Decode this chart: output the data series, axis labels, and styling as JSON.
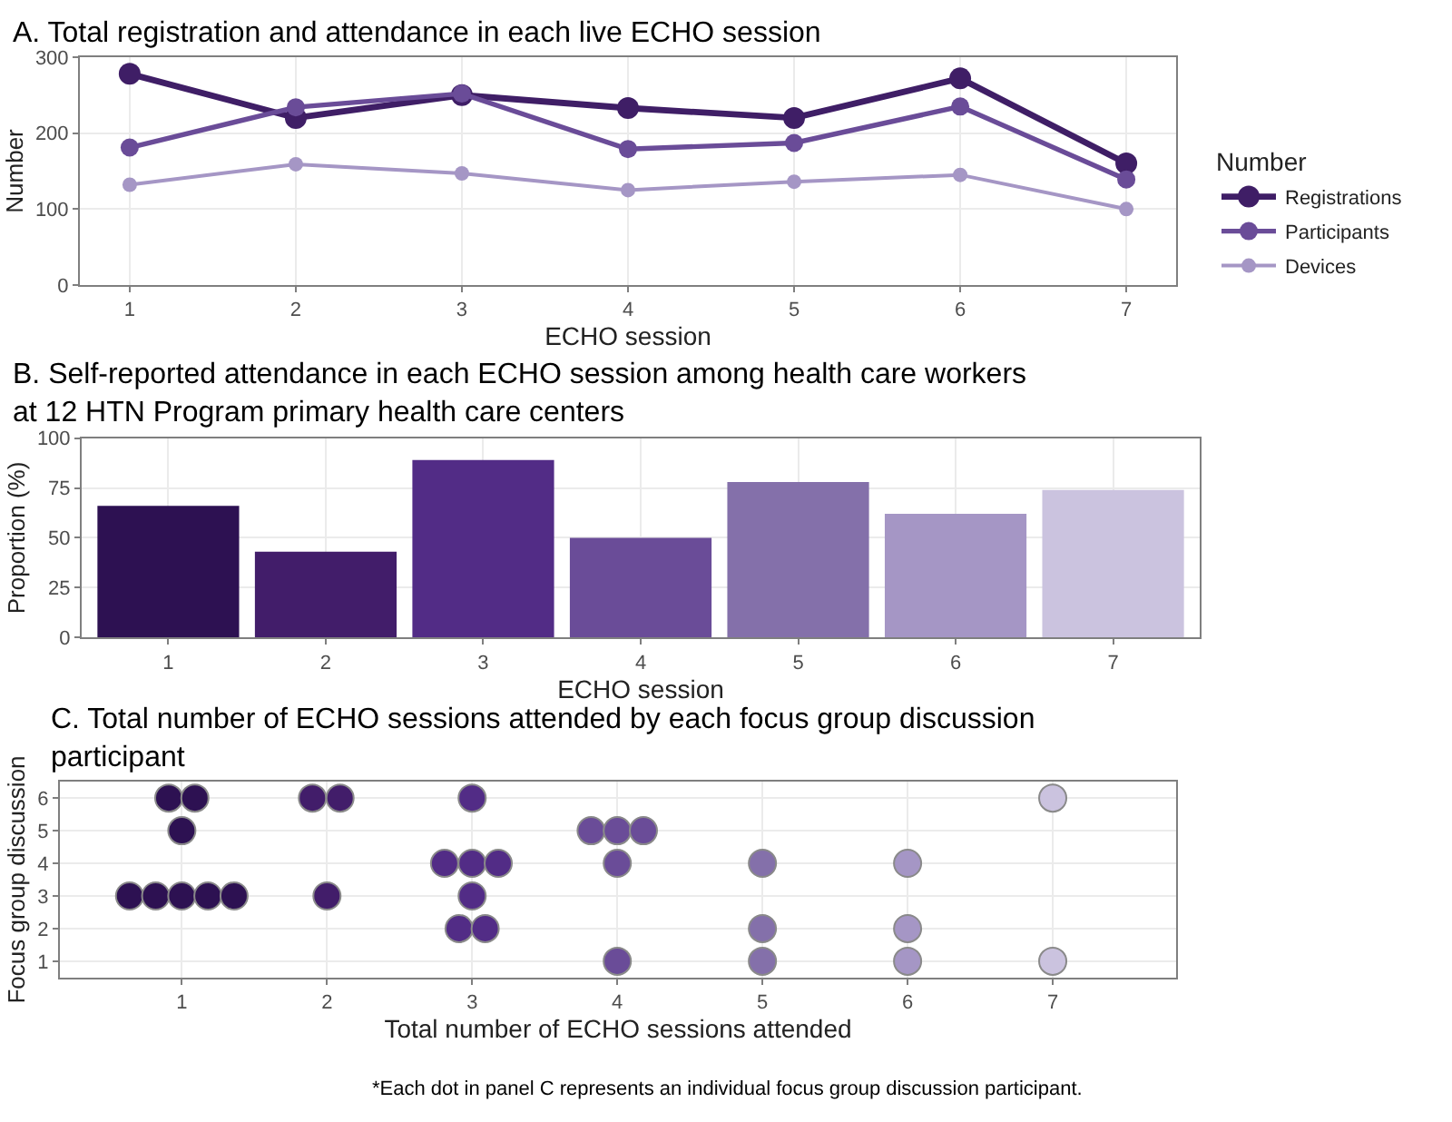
{
  "chart_data": [
    {
      "type": "line",
      "title": "A. Total registration and attendance in each live ECHO session",
      "xlabel": "ECHO session",
      "ylabel": "Number",
      "x": [
        1,
        2,
        3,
        4,
        5,
        6,
        7
      ],
      "xlim": [
        0.7,
        7.3
      ],
      "xticks": [
        1,
        2,
        3,
        4,
        5,
        6,
        7
      ],
      "ylim": [
        0,
        300
      ],
      "yticks": [
        0,
        100,
        200,
        300
      ],
      "grid": true,
      "marker": "circle",
      "legend": "right",
      "legend_title": "Number",
      "series": [
        {
          "name": "Registrations",
          "color": "#3f1e66",
          "values": [
            278,
            220,
            250,
            233,
            220,
            272,
            160
          ]
        },
        {
          "name": "Participants",
          "color": "#6a4c98",
          "values": [
            181,
            234,
            252,
            179,
            187,
            235,
            139
          ]
        },
        {
          "name": "Devices",
          "color": "#a596c5",
          "values": [
            132,
            159,
            147,
            125,
            136,
            145,
            100
          ]
        }
      ]
    },
    {
      "type": "bar",
      "title": "B. Self-reported attendance in each ECHO session among health care workers at 12 HTN Program primary health care centers",
      "xlabel": "ECHO session",
      "ylabel": "Proportion (%)",
      "categories": [
        "1",
        "2",
        "3",
        "4",
        "5",
        "6",
        "7"
      ],
      "values": [
        66,
        43,
        89,
        50,
        78,
        62,
        74
      ],
      "colors": [
        "#2d1152",
        "#421d6a",
        "#522c86",
        "#6a4c98",
        "#8470aa",
        "#a596c5",
        "#cbc3df"
      ],
      "ylim": [
        0,
        100
      ],
      "yticks": [
        0,
        25,
        50,
        75,
        100
      ],
      "grid": true
    },
    {
      "type": "scatter",
      "title": "C. Total number of ECHO sessions attended by each focus group discussion participant",
      "xlabel": "Total number of ECHO sessions attended",
      "ylabel": "Focus group discussion",
      "xlim": [
        0.16,
        7.85
      ],
      "xticks": [
        1,
        2,
        3,
        4,
        5,
        6,
        7
      ],
      "ylim": [
        0.5,
        6.5
      ],
      "yticks": [
        1,
        2,
        3,
        4,
        5,
        6
      ],
      "grid": true,
      "marker": "circle",
      "annotations": [
        "*Each dot in panel C represents an individual focus group discussion participant."
      ],
      "series": [
        {
          "x": [
            0.91,
            1.09,
            1.0,
            0.64,
            0.82,
            1.0,
            1.18,
            1.36,
            1.9,
            2.09,
            2.0,
            3.0,
            2.81,
            3.0,
            3.18,
            3.0,
            2.91,
            3.09,
            3.82,
            4.0,
            4.18,
            4.0,
            4.0,
            5.0,
            5.0,
            5.0,
            6.0,
            6.0,
            6.0,
            7.0,
            7.0
          ],
          "values": [
            6,
            6,
            5,
            3,
            3,
            3,
            3,
            3,
            6,
            6,
            3,
            6,
            4,
            4,
            4,
            3,
            2,
            2,
            5,
            5,
            5,
            4,
            1,
            4,
            2,
            1,
            4,
            2,
            1,
            6,
            1
          ],
          "colors": [
            "#2d1152",
            "#2d1152",
            "#2d1152",
            "#2d1152",
            "#2d1152",
            "#2d1152",
            "#2d1152",
            "#2d1152",
            "#421d6a",
            "#421d6a",
            "#421d6a",
            "#522c86",
            "#522c86",
            "#522c86",
            "#522c86",
            "#522c86",
            "#522c86",
            "#522c86",
            "#6a4c98",
            "#6a4c98",
            "#6a4c98",
            "#6a4c98",
            "#6a4c98",
            "#8470aa",
            "#8470aa",
            "#8470aa",
            "#a596c5",
            "#a596c5",
            "#a596c5",
            "#cbc3df",
            "#cbc3df"
          ]
        }
      ]
    }
  ]
}
